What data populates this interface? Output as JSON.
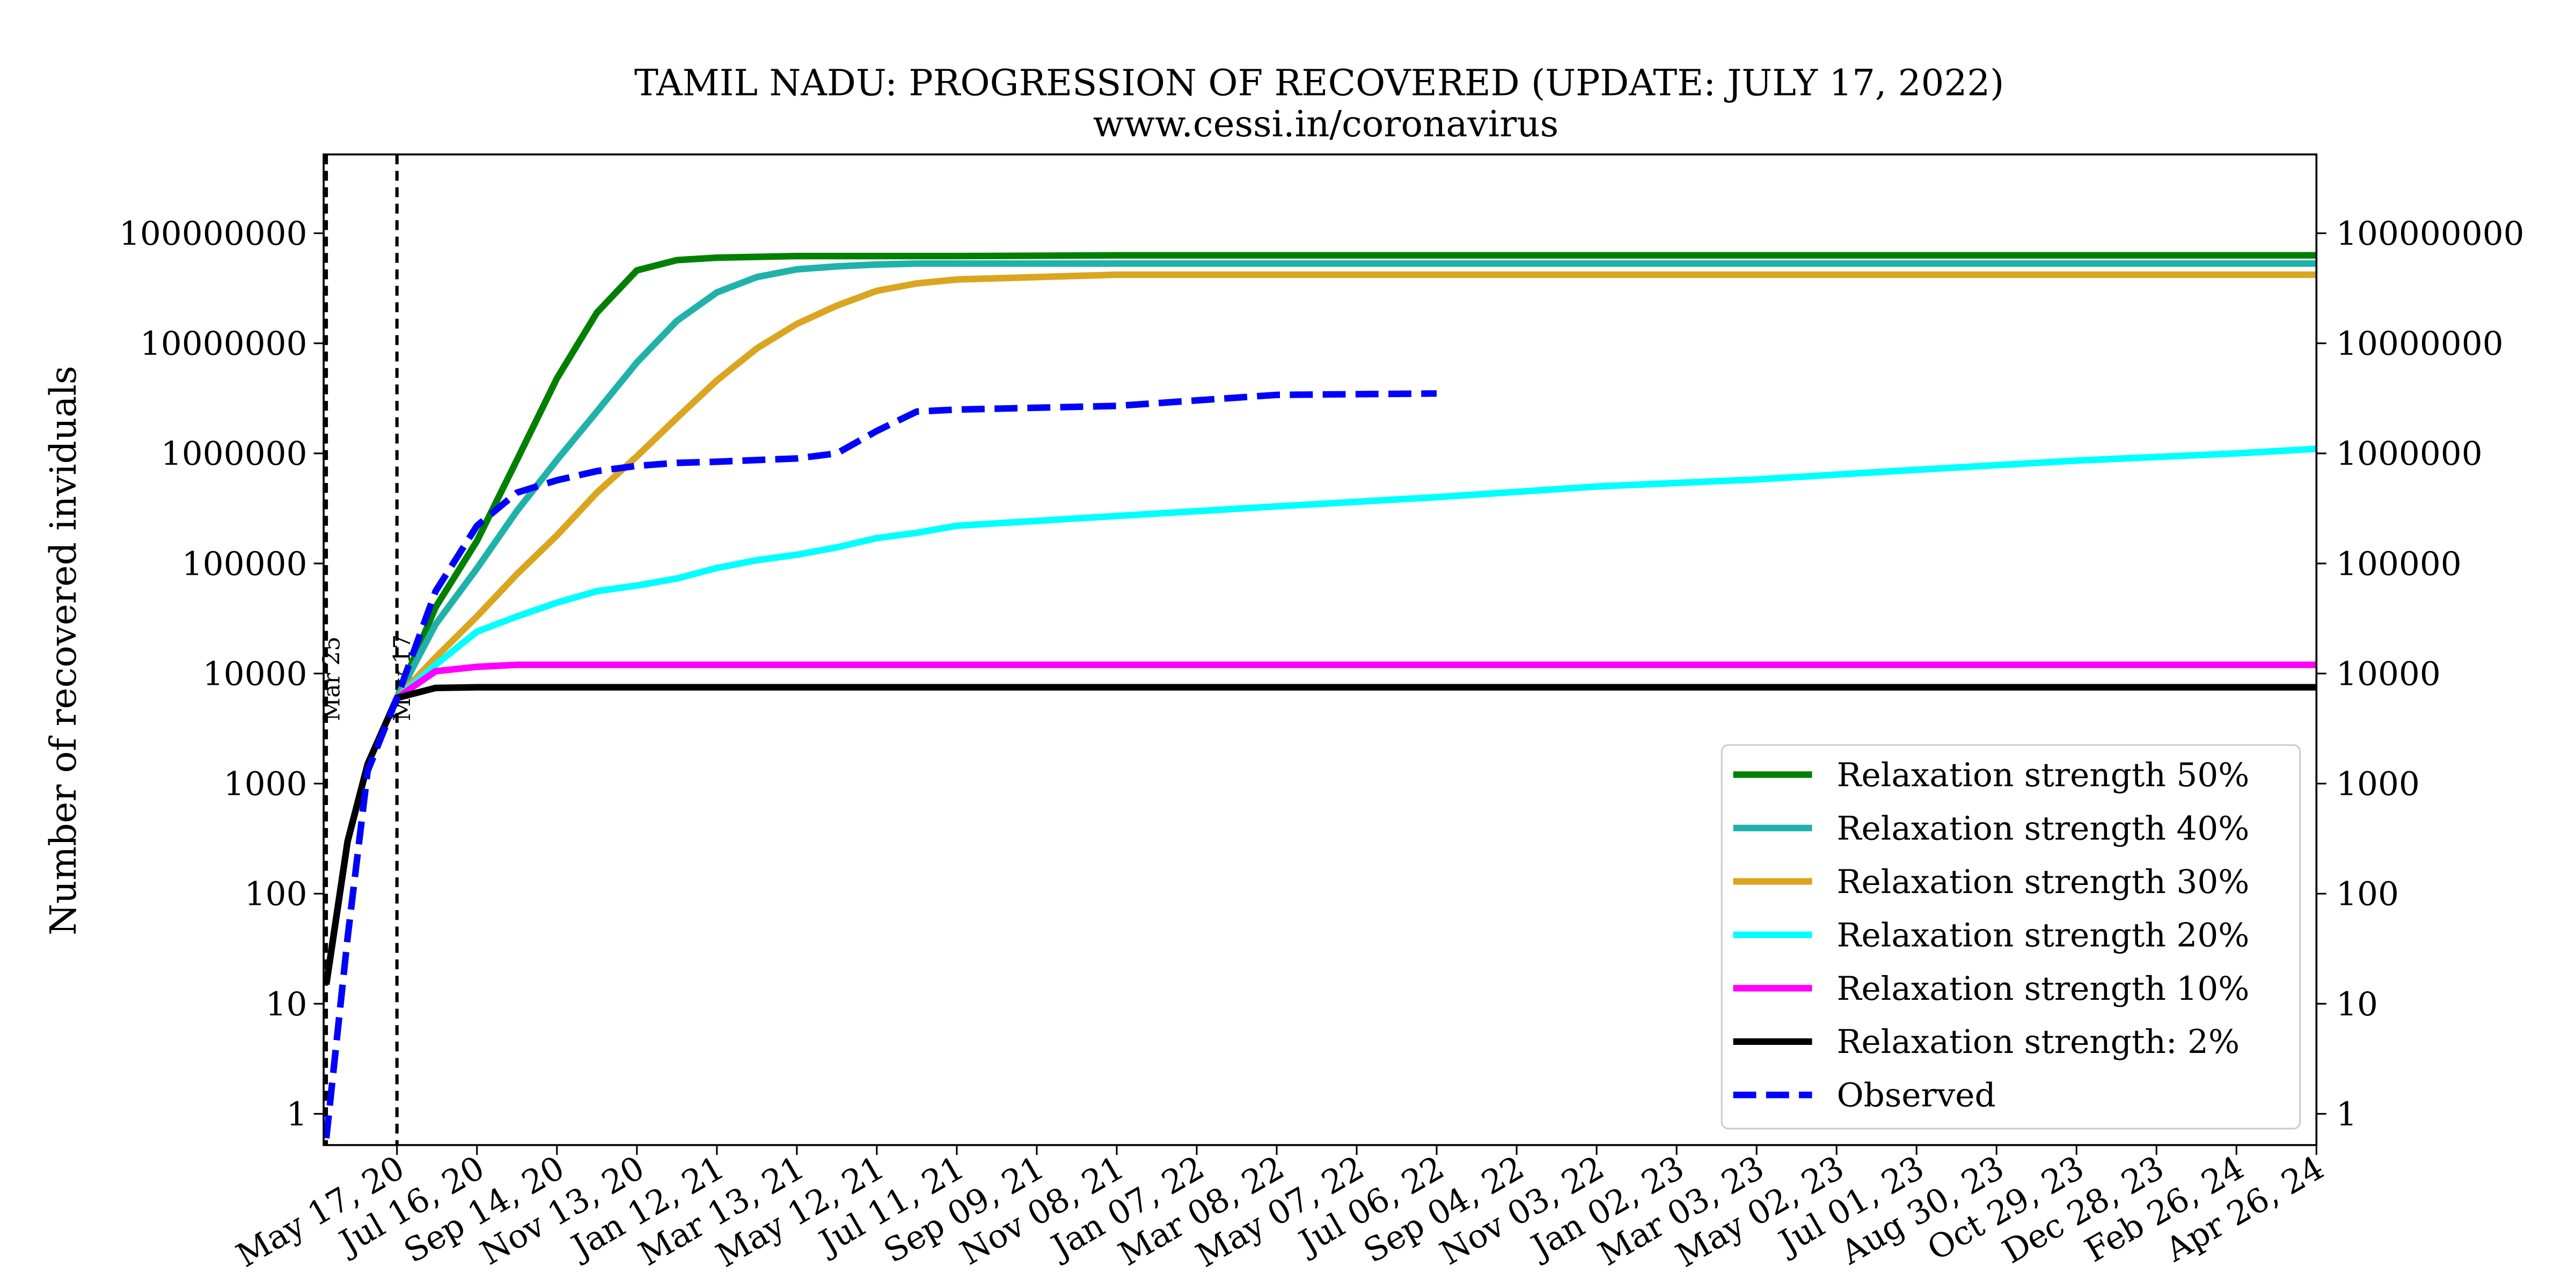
{
  "chart_data": {
    "type": "line",
    "title": "TAMIL NADU: PROGRESSION OF RECOVERED (UPDATE: JULY 17, 2022)",
    "subtitle": "www.cessi.in/coronavirus",
    "y_label": "Number of recovered inviduals",
    "log_y": true,
    "legend": "lower right",
    "x": [
      "2020-03-25",
      "2020-04-10",
      "2020-04-25",
      "2020-05-17",
      "2020-06-15",
      "2020-07-16",
      "2020-08-15",
      "2020-09-14",
      "2020-10-14",
      "2020-11-13",
      "2020-12-13",
      "2021-01-12",
      "2021-02-11",
      "2021-03-13",
      "2021-04-12",
      "2021-05-12",
      "2021-06-11",
      "2021-07-11",
      "2021-11-08",
      "2022-03-08",
      "2022-07-06",
      "2022-11-03",
      "2023-03-03",
      "2023-07-01",
      "2023-10-29",
      "2024-02-26",
      "2024-04-26"
    ],
    "series": [
      {
        "name": "Relaxation strength 50%",
        "color": "#008000",
        "linestyle": "solid",
        "values": [
          15,
          300,
          1500,
          6000,
          40000,
          160000,
          870000,
          4800000,
          19000000,
          46000000,
          57000000,
          60000000,
          61000000,
          62000000,
          62000000,
          62000000,
          62000000,
          62000000,
          63000000,
          63000000,
          63000000,
          63000000,
          63000000,
          63000000,
          63000000,
          63000000,
          63000000
        ]
      },
      {
        "name": "Relaxation strength 40%",
        "color": "#20b2aa",
        "linestyle": "solid",
        "values": [
          15,
          300,
          1500,
          6000,
          28000,
          90000,
          300000,
          870000,
          2400000,
          6700000,
          16000000,
          29000000,
          40000000,
          47000000,
          50000000,
          52000000,
          53000000,
          53000000,
          53000000,
          53000000,
          53000000,
          53000000,
          53000000,
          53000000,
          53000000,
          53000000,
          53000000
        ]
      },
      {
        "name": "Relaxation strength 30%",
        "color": "#daa520",
        "linestyle": "solid",
        "values": [
          15,
          300,
          1500,
          6000,
          14000,
          33000,
          80000,
          180000,
          440000,
          940000,
          2100000,
          4600000,
          9000000,
          15000000,
          22000000,
          30000000,
          35000000,
          38000000,
          42000000,
          42000000,
          42000000,
          42000000,
          42000000,
          42000000,
          42000000,
          42000000,
          42000000
        ]
      },
      {
        "name": "Relaxation strength 20%",
        "color": "#00ffff",
        "linestyle": "solid",
        "values": [
          15,
          300,
          1500,
          6000,
          12000,
          24000,
          33000,
          44000,
          56000,
          63000,
          73000,
          91000,
          107000,
          120000,
          140000,
          170000,
          190000,
          220000,
          270000,
          330000,
          400000,
          500000,
          580000,
          710000,
          860000,
          1000000,
          1100000
        ]
      },
      {
        "name": "Relaxation strength 10%",
        "color": "#ff00ff",
        "linestyle": "solid",
        "values": [
          15,
          300,
          1500,
          6000,
          10500,
          11500,
          12000,
          12000,
          12000,
          12000,
          12000,
          12000,
          12000,
          12000,
          12000,
          12000,
          12000,
          12000,
          12000,
          12000,
          12000,
          12000,
          12000,
          12000,
          12000,
          12000,
          12000
        ]
      },
      {
        "name": "Relaxation strength: 2%",
        "color": "#000000",
        "linestyle": "solid",
        "values": [
          15,
          300,
          1500,
          6000,
          7400,
          7500,
          7500,
          7500,
          7500,
          7500,
          7500,
          7500,
          7500,
          7500,
          7500,
          7500,
          7500,
          7500,
          7500,
          7500,
          7500,
          7500,
          7500,
          7500,
          7500,
          7500,
          7500
        ]
      },
      {
        "name": "Observed",
        "color": "#0000ff",
        "linestyle": "dashed",
        "values": [
          0.6,
          40,
          1300,
          6000,
          56000,
          220000,
          440000,
          570000,
          690000,
          770000,
          820000,
          840000,
          870000,
          900000,
          1000000,
          1600000,
          2400000,
          2500000,
          2700000,
          3400000,
          3500000,
          null,
          null,
          null,
          null,
          null,
          null
        ]
      }
    ],
    "annotations": [
      {
        "text": "Mar 25",
        "x": "2020-03-25"
      },
      {
        "text": "May 17",
        "x": "2020-05-17"
      }
    ],
    "xlim": [
      "2020-03-23",
      "2024-04-26"
    ],
    "xticks": [
      {
        "value": "2020-05-17",
        "label": "May 17, 20"
      },
      {
        "value": "2020-07-16",
        "label": "Jul 16, 20"
      },
      {
        "value": "2020-09-14",
        "label": "Sep 14, 20"
      },
      {
        "value": "2020-11-13",
        "label": "Nov 13, 20"
      },
      {
        "value": "2021-01-12",
        "label": "Jan 12, 21"
      },
      {
        "value": "2021-03-13",
        "label": "Mar 13, 21"
      },
      {
        "value": "2021-05-12",
        "label": "May 12, 21"
      },
      {
        "value": "2021-07-11",
        "label": "Jul 11, 21"
      },
      {
        "value": "2021-09-09",
        "label": "Sep 09, 21"
      },
      {
        "value": "2021-11-08",
        "label": "Nov 08, 21"
      },
      {
        "value": "2022-01-07",
        "label": "Jan 07, 22"
      },
      {
        "value": "2022-03-08",
        "label": "Mar 08, 22"
      },
      {
        "value": "2022-05-07",
        "label": "May 07, 22"
      },
      {
        "value": "2022-07-06",
        "label": "Jul 06, 22"
      },
      {
        "value": "2022-09-04",
        "label": "Sep 04, 22"
      },
      {
        "value": "2022-11-03",
        "label": "Nov 03, 22"
      },
      {
        "value": "2023-01-02",
        "label": "Jan 02, 23"
      },
      {
        "value": "2023-03-03",
        "label": "Mar 03, 23"
      },
      {
        "value": "2023-05-02",
        "label": "May 02, 23"
      },
      {
        "value": "2023-07-01",
        "label": "Jul 01, 23"
      },
      {
        "value": "2023-08-30",
        "label": "Aug 30, 23"
      },
      {
        "value": "2023-10-29",
        "label": "Oct 29, 23"
      },
      {
        "value": "2023-12-28",
        "label": "Dec 28, 23"
      },
      {
        "value": "2024-02-26",
        "label": "Feb 26, 24"
      },
      {
        "value": "2024-04-26",
        "label": "Apr 26, 24"
      }
    ],
    "ylim": [
      0.52,
      520000000
    ],
    "yticks": [
      1,
      10,
      100,
      1000,
      10000,
      100000,
      1000000,
      10000000,
      100000000
    ]
  }
}
